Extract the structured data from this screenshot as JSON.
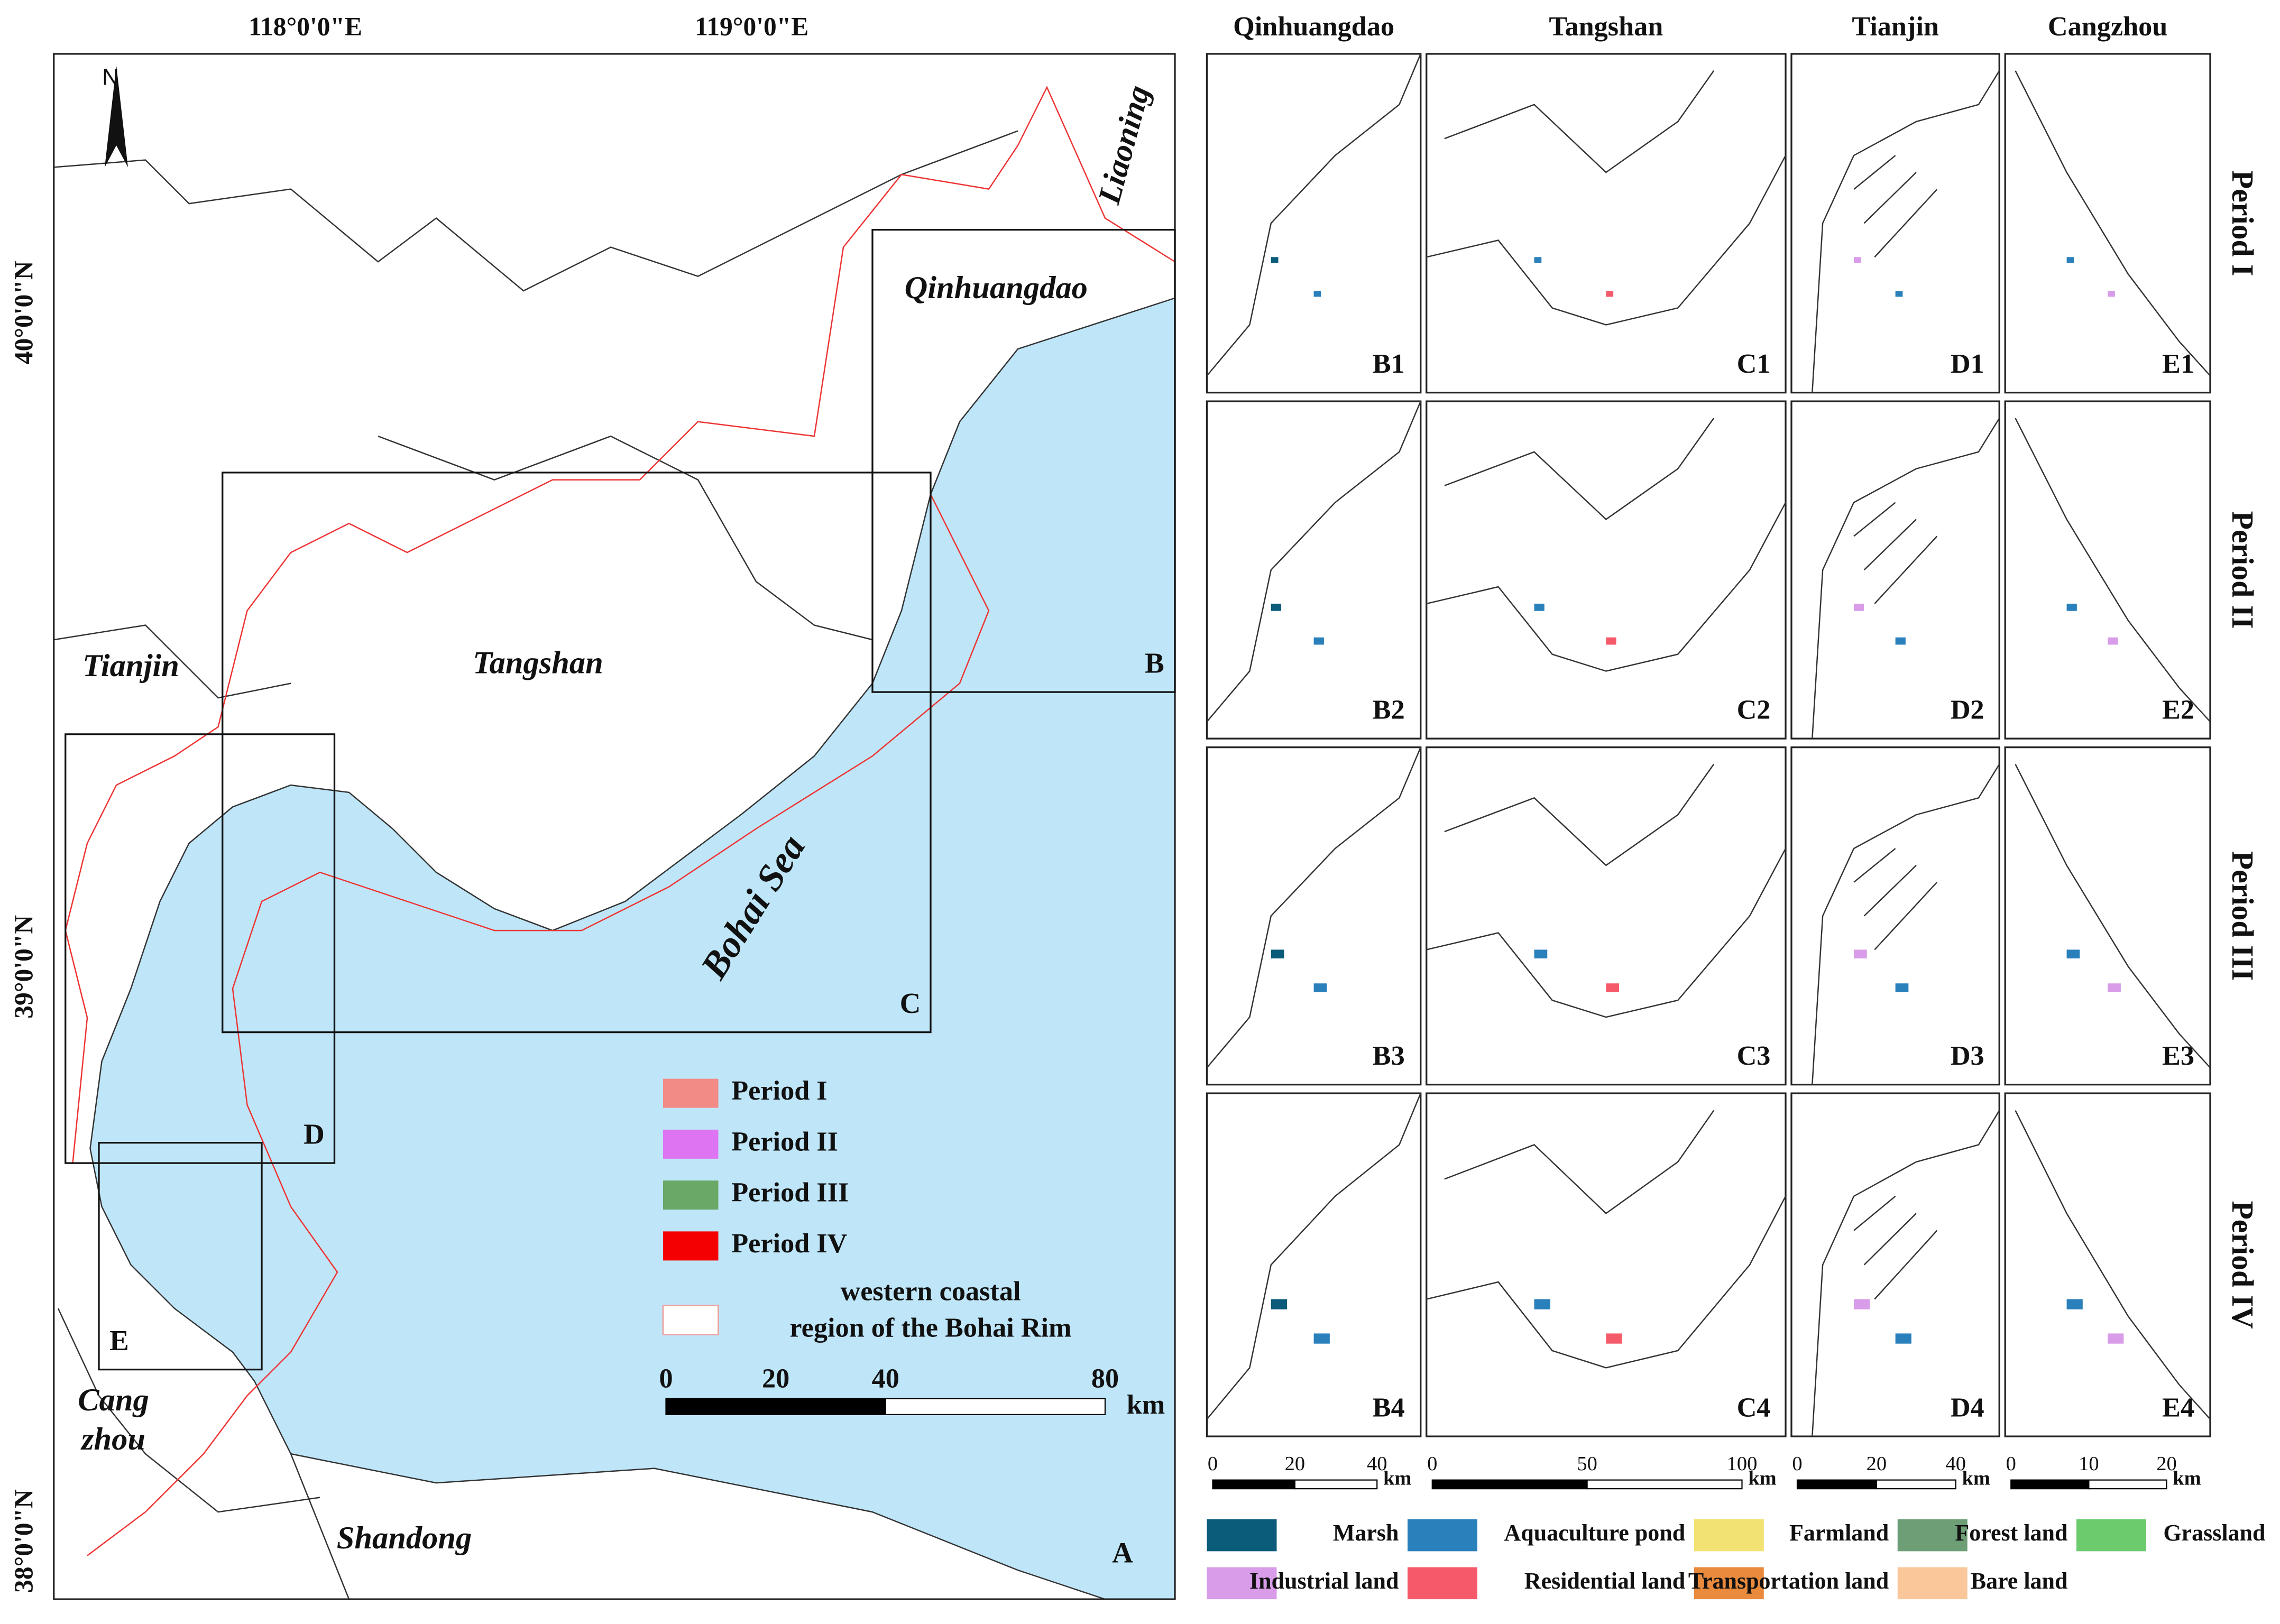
{
  "main_map": {
    "lon_labels": [
      "118°0'0\"E",
      "119°0'0\"E"
    ],
    "lat_labels": [
      "40°0'0\"N",
      "39°0'0\"N",
      "38°0'0\"N"
    ],
    "north": "N",
    "places": [
      "Liaoning",
      "Qinhuangdao",
      "Tianjin",
      "Tangshan",
      "Cang",
      "zhou",
      "Shandong"
    ],
    "sea": "Bohai Sea",
    "boxes": [
      "B",
      "C",
      "D",
      "E"
    ],
    "panel": "A",
    "legend": {
      "items": [
        {
          "label": "Period I",
          "color": "#f28a85"
        },
        {
          "label": "Period II",
          "color": "#df74f2"
        },
        {
          "label": "Period III",
          "color": "#6aa866"
        },
        {
          "label": "Period IV",
          "color": "#f50000"
        }
      ],
      "region": [
        "western coastal",
        "region of the Bohai Rim"
      ],
      "region_color": "#f0a0a0"
    },
    "scale": {
      "ticks": [
        0,
        20,
        40,
        80
      ],
      "unit": "km"
    }
  },
  "panels": {
    "columns": [
      "Qinhuangdao",
      "Tangshan",
      "Tianjin",
      "Cangzhou"
    ],
    "rows": [
      "Period I",
      "Period II",
      "Period III",
      "Period IV"
    ],
    "labels": [
      [
        "B1",
        "C1",
        "D1",
        "E1"
      ],
      [
        "B2",
        "C2",
        "D2",
        "E2"
      ],
      [
        "B3",
        "C3",
        "D3",
        "E3"
      ],
      [
        "B4",
        "C4",
        "D4",
        "E4"
      ]
    ],
    "scales": [
      {
        "ticks": [
          0,
          20,
          40
        ],
        "unit": "km"
      },
      {
        "ticks": [
          0,
          50,
          100
        ],
        "unit": "km"
      },
      {
        "ticks": [
          0,
          20,
          40
        ],
        "unit": "km"
      },
      {
        "ticks": [
          0,
          10,
          20
        ],
        "unit": "km"
      }
    ]
  },
  "landuse_legend": [
    {
      "label": "Marsh",
      "color": "#0b5b7a"
    },
    {
      "label": "Aquaculture pond",
      "color": "#2a80bb"
    },
    {
      "label": "Farmland",
      "color": "#f2e271"
    },
    {
      "label": "Forest land",
      "color": "#6d9e76"
    },
    {
      "label": "Grassland",
      "color": "#6ccb6c"
    },
    {
      "label": "Industrial land",
      "color": "#d89ce9"
    },
    {
      "label": "Residential land",
      "color": "#f55a6a"
    },
    {
      "label": "Transportation land",
      "color": "#e98a3c"
    },
    {
      "label": "Bare land",
      "color": "#f9c79a"
    }
  ]
}
